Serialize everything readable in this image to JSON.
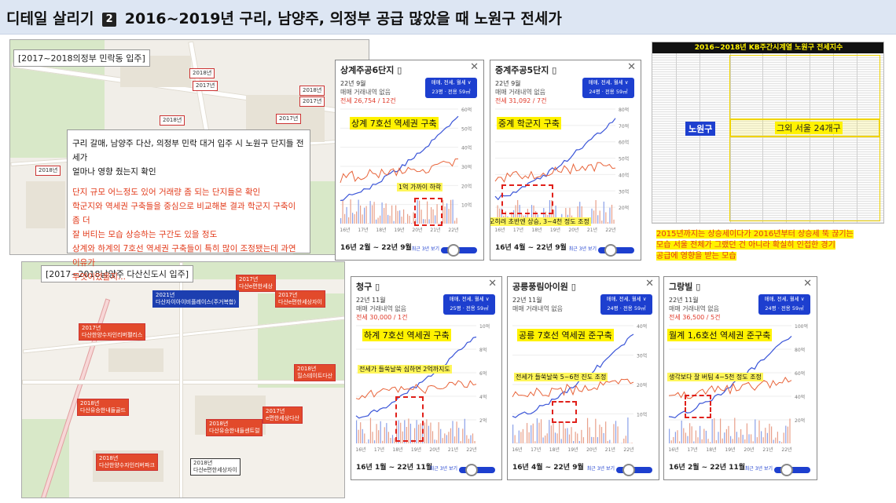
{
  "header": {
    "prefix": "디테일 살리기",
    "number": "2",
    "title": "2016~2019년  구리, 남양주, 의정부 공급 많았을 때 노원구 전세가"
  },
  "map1": {
    "label": "[2017~2018의정부 민락동 입주]",
    "pins": [
      "2018년",
      "2017년",
      "2018년",
      "2017년",
      "2018년",
      "2017년",
      "2018년"
    ]
  },
  "textbox": {
    "lines_black": [
      "구리 갈매, 남양주 다산, 의정부 민락 대거 입주 시 노원구 단지들 전세가",
      "얼마나 영향 줬는지 확인"
    ],
    "lines_red": [
      "단지 규모 어느정도 있어 거래량 좀 되는 단지들은 확인",
      "학군지와 역세권 구축들을 중심으로 비교해본 결과 학군지 구축이 좀 더",
      "잘 버티는 모습 상승하는 구간도 있을 정도",
      "상계와 하계의 7호선 역세권 구축들이 특히 많이 조정됐는데 과연 이유가",
      "무엇이었을지..."
    ]
  },
  "map2": {
    "label": "[2017~2018남양주 다산신도시 입주]",
    "pins": [
      {
        "year": "2017년",
        "name": "다산e편한세상"
      },
      {
        "year": "2021년",
        "name": "다산자이아이비플레이스(주거복합)"
      },
      {
        "year": "2017년",
        "name": "다산e편한세상자이"
      },
      {
        "year": "2017년",
        "name": "다산한양수자인리버팰리스"
      },
      {
        "year": "2018년",
        "name": "힐스테이트다산"
      },
      {
        "year": "2018년",
        "name": "다산유승한내들골드"
      },
      {
        "year": "2017년",
        "name": "e편한세상다산"
      },
      {
        "year": "2018년",
        "name": "다산유승한내들센트럴"
      },
      {
        "year": "2018년",
        "name": "다산한양수자인리버파크"
      },
      {
        "year": "2018년",
        "name": "다산e편한세상자이"
      }
    ]
  },
  "panels": [
    {
      "name": "상계주공6단지",
      "date": "22년 9월",
      "sub": "매매 거래내역 없음",
      "price": "전세 26,754 / 12건",
      "filter": "매매, 전세, 월세 ∨",
      "pyeong": "23평 · 전용 59㎡",
      "highlight": "상계 7호선 역세권 구축",
      "note": "1억 가까이 하락",
      "range": "16년 2월 ~ 22년 9월",
      "recent": "최근 3년 보기",
      "years": [
        "16년",
        "17년",
        "18년",
        "19년",
        "20년",
        "21년",
        "22년"
      ],
      "yticks": [
        "60억",
        "50억",
        "40억",
        "30억",
        "20억",
        "10억"
      ]
    },
    {
      "name": "중계주공5단지",
      "date": "22년 9월",
      "sub": "매매 거래내역 없음",
      "price": "전세 31,092 / 7건",
      "filter": "매매, 전세, 월세 ∨",
      "pyeong": "24평 · 전용 59㎡",
      "highlight": "중계 학군지 구축",
      "note": "오히려 초반엔 상승, 3~4천 정도 조정",
      "range": "16년 4월 ~ 22년 9월",
      "recent": "최근 3년 보기",
      "years": [
        "16년",
        "17년",
        "18년",
        "19년",
        "20년",
        "21년",
        "22년"
      ],
      "yticks": [
        "80억",
        "70억",
        "60억",
        "50억",
        "40억",
        "30억",
        "20억"
      ]
    },
    {
      "name": "청구",
      "date": "22년 11월",
      "sub": "매매 거래내역 없음",
      "price": "전세 30,000 / 1건",
      "filter": "매매, 전세, 월세 ∨",
      "pyeong": "25평 · 전용 59㎡",
      "highlight": "하계 7호선 역세권 구축",
      "note": "전세가 들쑥날쑥 심하면 2억까지도",
      "range": "16년 1월 ~ 22년 11월",
      "recent": "최근 3년 보기",
      "years": [
        "16년",
        "17년",
        "18년",
        "19년",
        "20년",
        "21년",
        "22년"
      ],
      "yticks": [
        "10억",
        "8억",
        "6억",
        "4억",
        "2억"
      ]
    },
    {
      "name": "공릉풍림아이원",
      "date": "22년 11월",
      "sub": "매매 거래내역 없음",
      "price": "",
      "filter": "매매, 전세, 월세 ∨",
      "pyeong": "24평 · 전용 59㎡",
      "highlight": "공릉 7호선 역세권 준구축",
      "note": "전세가 들쑥날쑥 5~6천 진도 조정",
      "range": "16년 4월 ~ 22년 9월",
      "recent": "최근 3년 보기",
      "years": [
        "16년",
        "17년",
        "18년",
        "19년",
        "20년",
        "21년",
        "22년"
      ],
      "yticks": [
        "40억",
        "30억",
        "20억",
        "10억"
      ]
    },
    {
      "name": "그랑빌",
      "date": "22년 11월",
      "sub": "매매 거래내역 없음",
      "price": "전세 36,500 / 5건",
      "filter": "매매, 전세, 월세 ∨",
      "pyeong": "24평 · 전용 59㎡",
      "highlight": "월계 1,6호선 역세권 준구축",
      "note": "생각보다 잘 버팀 4~5천 정도 조정",
      "range": "16년 2월 ~ 22년 11월",
      "recent": "최근 3년 보기",
      "years": [
        "16년",
        "17년",
        "18년",
        "19년",
        "20년",
        "21년",
        "22년"
      ],
      "yticks": [
        "100억",
        "80억",
        "60억",
        "40억",
        "20억"
      ]
    }
  ],
  "kb": {
    "title": "2016~2018년 KB주간시계열 노원구 전세지수",
    "tag": "노원구",
    "other": "그외 서울 24개구",
    "note_lines": [
      "2015년까지는 상승세이다가 2016년부터 상승세 뚝 끊기는",
      "모습 서울 전체가 그랬던 건 아니라 확실히 인접한 경기",
      "공급에 영향을 받는 모습"
    ]
  },
  "colors": {
    "sale": "#3a55d8",
    "rent": "#e8643a",
    "accent": "#1d3fcf",
    "highlight": "#fff200"
  }
}
